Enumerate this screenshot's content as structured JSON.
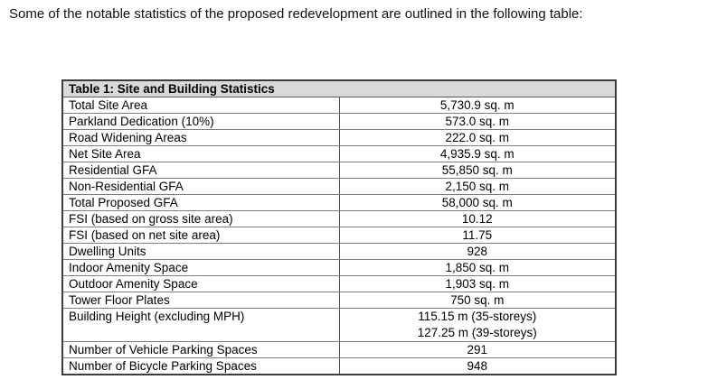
{
  "intro": {
    "text": "Some of the notable statistics of the proposed redevelopment are outlined in the following table:"
  },
  "table": {
    "title": "Table 1: Site and Building Statistics",
    "header_bg": "#d9d9d9",
    "border_color": "#7f7f7f",
    "rows": [
      {
        "label": "Total Site Area",
        "value": "5,730.9 sq. m"
      },
      {
        "label": "Parkland Dedication (10%)",
        "value": "573.0 sq. m"
      },
      {
        "label": "Road Widening Areas",
        "value": "222.0 sq. m"
      },
      {
        "label": "Net Site Area",
        "value": "4,935.9 sq. m"
      },
      {
        "label": "Residential GFA",
        "value": "55,850 sq. m"
      },
      {
        "label": "Non-Residential GFA",
        "value": "2,150 sq. m"
      },
      {
        "label": "Total Proposed GFA",
        "value": "58,000 sq. m"
      },
      {
        "label": "FSI (based on gross site area)",
        "value": "10.12"
      },
      {
        "label": "FSI (based on net site area)",
        "value": "11.75"
      },
      {
        "label": "Dwelling Units",
        "value": "928"
      },
      {
        "label": "Indoor Amenity Space",
        "value": "1,850 sq. m"
      },
      {
        "label": "Outdoor Amenity Space",
        "value": "1,903 sq. m"
      },
      {
        "label": "Tower Floor Plates",
        "value": "750 sq. m"
      },
      {
        "label": "Building Height (excluding MPH)",
        "value_lines": [
          "115.15 m (35-storeys)",
          "127.25 m (39-storeys)"
        ]
      },
      {
        "label": "Number of Vehicle Parking Spaces",
        "value": "291"
      },
      {
        "label": "Number of Bicycle Parking Spaces",
        "value": "948"
      }
    ]
  }
}
